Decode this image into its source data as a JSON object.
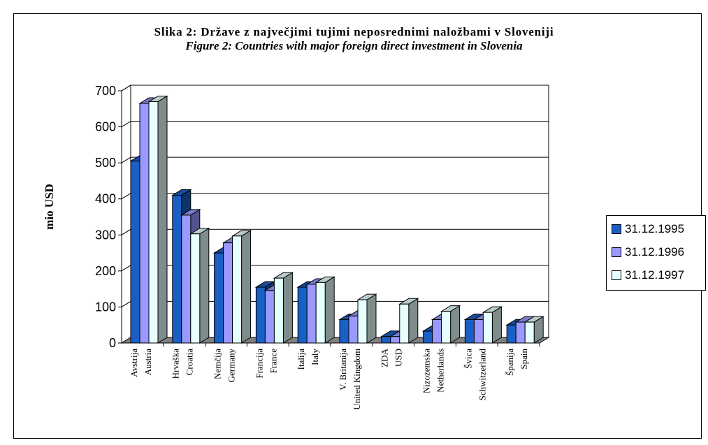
{
  "chart_data": {
    "type": "bar",
    "title": "Slika 2: Države z največjimi tujimi neposrednimi naložbami v Sloveniji",
    "subtitle": "Figure 2: Countries with major foreign direct investment in Slovenia",
    "ylabel": "mio USD",
    "xlabel": "",
    "ylim": [
      0,
      700
    ],
    "yticks": [
      "0",
      "100",
      "200",
      "300",
      "400",
      "500",
      "600",
      "700"
    ],
    "grid": true,
    "legend_position": "right",
    "categories": [
      {
        "slo": "Avstrija",
        "eng": "Austria"
      },
      {
        "slo": "Hrvaška",
        "eng": "Croatia"
      },
      {
        "slo": "Nemčija",
        "eng": "Germany"
      },
      {
        "slo": "Francija",
        "eng": "France"
      },
      {
        "slo": "Italija",
        "eng": "Italy"
      },
      {
        "slo": "V. Britanija",
        "eng": "United Kingdom"
      },
      {
        "slo": "ZDA",
        "eng": "USD"
      },
      {
        "slo": "Nizozemska",
        "eng": "Netherlands"
      },
      {
        "slo": "Švica",
        "eng": "Schwitzerland"
      },
      {
        "slo": "Španija",
        "eng": "Spain"
      }
    ],
    "series": [
      {
        "name": "31.12.1995",
        "color": "#1a5fc4",
        "values": [
          505,
          410,
          250,
          155,
          155,
          65,
          18,
          33,
          65,
          50
        ]
      },
      {
        "name": "31.12.1996",
        "color": "#9999ff",
        "values": [
          665,
          355,
          278,
          146,
          163,
          75,
          18,
          65,
          65,
          58
        ]
      },
      {
        "name": "31.12.1997",
        "color": "#e6ffff",
        "values": [
          670,
          303,
          297,
          180,
          168,
          120,
          108,
          88,
          85,
          58
        ]
      }
    ]
  }
}
